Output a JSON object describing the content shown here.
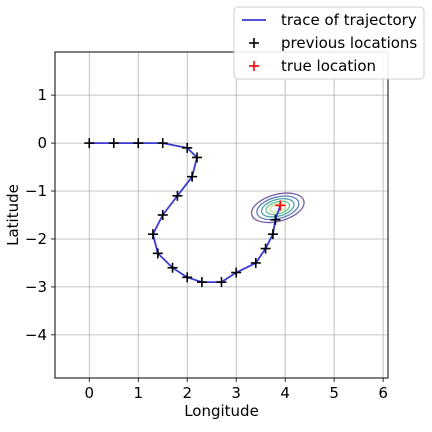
{
  "chart_data": {
    "type": "line",
    "title": "",
    "xlabel": "Longitude",
    "ylabel": "Latitude",
    "xlim": [
      -0.7,
      6.1
    ],
    "ylim": [
      -4.9,
      1.9
    ],
    "xticks": [
      0,
      1,
      2,
      3,
      4,
      5,
      6
    ],
    "yticks": [
      1,
      0,
      -1,
      -2,
      -3,
      -4
    ],
    "grid": true,
    "legend_position": "top-right",
    "legend": [
      {
        "label": "trace of trajectory",
        "kind": "line",
        "color": "#3b3bd4"
      },
      {
        "label": "previous locations",
        "kind": "plus",
        "color": "#000000"
      },
      {
        "label": "true location",
        "kind": "plus",
        "color": "#ff0000"
      }
    ],
    "series": [
      {
        "name": "trace of trajectory",
        "color": "#3b3bd4",
        "x": [
          0,
          0.5,
          1.0,
          1.5,
          2.0,
          2.2,
          2.1,
          1.8,
          1.5,
          1.3,
          1.4,
          1.7,
          2.0,
          2.3,
          2.7,
          3.0,
          3.4,
          3.6,
          3.75,
          3.8,
          3.9
        ],
        "y": [
          0,
          0,
          0,
          0,
          -0.1,
          -0.3,
          -0.7,
          -1.1,
          -1.5,
          -1.9,
          -2.3,
          -2.6,
          -2.8,
          -2.9,
          -2.9,
          -2.7,
          -2.5,
          -2.2,
          -1.9,
          -1.6,
          -1.3
        ]
      },
      {
        "name": "previous locations",
        "color": "#000000",
        "x": [
          0,
          0.5,
          1.0,
          1.5,
          2.0,
          2.2,
          2.1,
          1.8,
          1.5,
          1.3,
          1.4,
          1.7,
          2.0,
          2.3,
          2.7,
          3.0,
          3.4,
          3.6,
          3.75,
          3.8
        ],
        "y": [
          0,
          0,
          0,
          0,
          -0.1,
          -0.3,
          -0.7,
          -1.1,
          -1.5,
          -1.9,
          -2.3,
          -2.6,
          -2.8,
          -2.9,
          -2.9,
          -2.7,
          -2.5,
          -2.2,
          -1.9,
          -1.6
        ]
      },
      {
        "name": "true location",
        "color": "#ff0000",
        "x": [
          3.9
        ],
        "y": [
          -1.3
        ]
      }
    ],
    "uncertainty_ellipse": {
      "center": [
        3.85,
        -1.35
      ],
      "semi_axes": [
        0.55,
        0.28
      ],
      "rotation_deg": 15,
      "scales": [
        1.0,
        0.8,
        0.62,
        0.45,
        0.3
      ],
      "colors": [
        "#7b5ea7",
        "#5e7fb8",
        "#4aa3a8",
        "#6cc59a",
        "#c8e08a"
      ]
    }
  }
}
